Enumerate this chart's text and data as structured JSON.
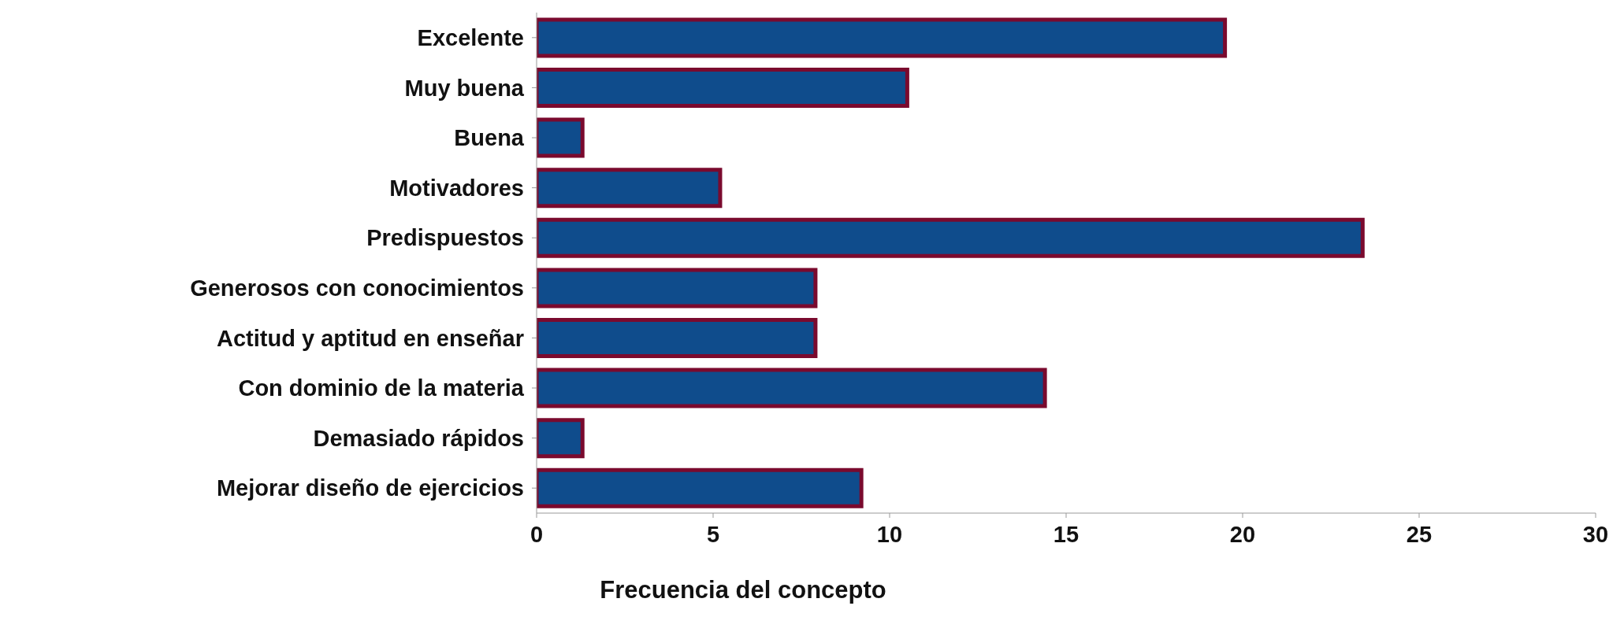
{
  "chart_data": {
    "type": "bar",
    "orientation": "horizontal",
    "xlabel": "Frecuencia del concepto",
    "categories": [
      "Excelente",
      "Muy buena",
      "Buena",
      "Motivadores",
      "Predispuestos",
      "Generosos con conocimientos",
      "Actitud y aptitud en enseñar",
      "Con dominio de la materia",
      "Demasiado rápidos",
      "Mejorar diseño de ejercicios"
    ],
    "values": [
      19.5,
      10.5,
      1.3,
      5.2,
      23.4,
      7.9,
      7.9,
      14.4,
      1.3,
      9.2
    ],
    "color": "#0f4c8c",
    "xlim": [
      0,
      30
    ],
    "xticks": [
      0,
      5,
      10,
      15,
      20,
      25,
      30
    ],
    "grid": false
  }
}
